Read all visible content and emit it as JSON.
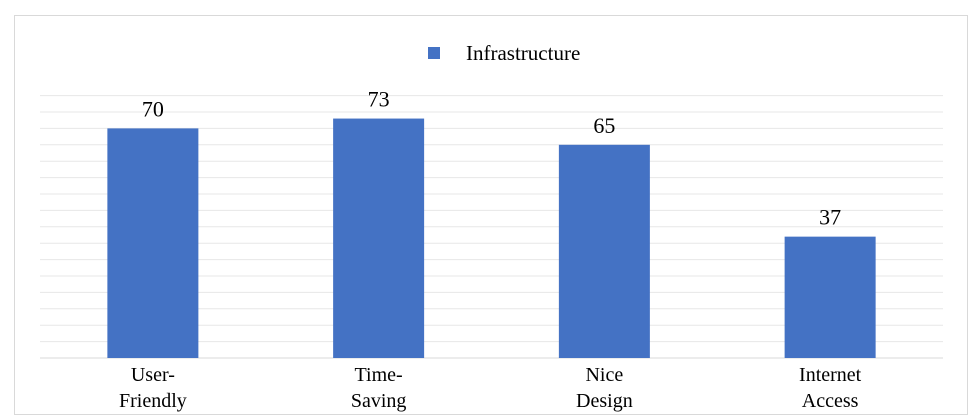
{
  "chart_data": {
    "type": "bar",
    "categories": [
      [
        "User-",
        "Friendly"
      ],
      [
        "Time-",
        "Saving"
      ],
      [
        "Nice",
        "Design"
      ],
      [
        "Internet",
        "Access"
      ]
    ],
    "series": [
      {
        "name": "Infrastructure",
        "values": [
          70,
          73,
          65,
          37
        ]
      }
    ],
    "title": "",
    "xlabel": "",
    "ylabel": "",
    "ylim": [
      0,
      80
    ],
    "grid": true,
    "legend": "top-center",
    "colors": {
      "bar": "#4472C4",
      "grid": "#e7e7e7",
      "axis": "#d9d9d9"
    }
  }
}
